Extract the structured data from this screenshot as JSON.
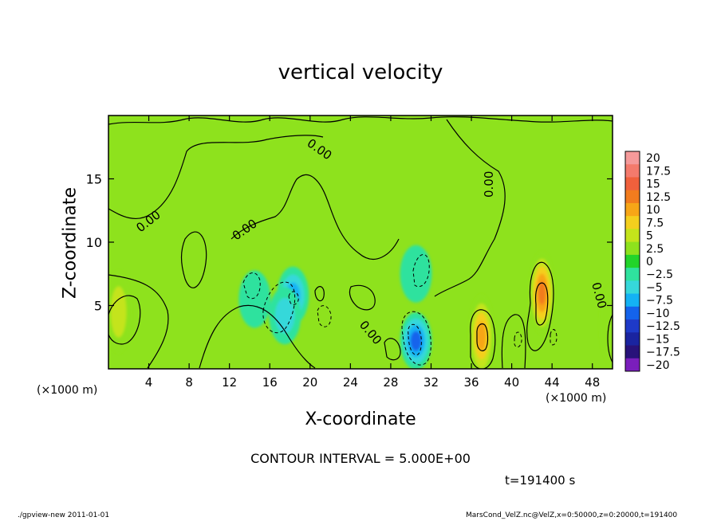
{
  "chart_data": {
    "type": "heatmap",
    "title": "vertical velocity",
    "xlabel": "X-coordinate",
    "ylabel": "Z-coordinate",
    "x_unit_label": "(×1000 m)",
    "y_unit_label": "(×1000 m)",
    "xlim": [
      0,
      50
    ],
    "ylim": [
      0,
      20
    ],
    "x_ticks": [
      4,
      8,
      12,
      16,
      20,
      24,
      28,
      32,
      36,
      40,
      44,
      48
    ],
    "y_ticks": [
      5,
      10,
      15
    ],
    "colorbar": {
      "levels": [
        "20",
        "17.5",
        "15",
        "12.5",
        "10",
        "7.5",
        "5",
        "2.5",
        "0",
        "−2.5",
        "−5",
        "−7.5",
        "−10",
        "−12.5",
        "−15",
        "−17.5",
        "−20"
      ],
      "colors": [
        "#f59a9a",
        "#f47a6c",
        "#f0603c",
        "#f27c1e",
        "#f7a617",
        "#f4cf1e",
        "#c4e41b",
        "#8ee21d",
        "#22d42a",
        "#2fe29e",
        "#36d8da",
        "#14b2f4",
        "#1463ec",
        "#1e3ac8",
        "#1a24a0",
        "#28127a",
        "#7a1ebc"
      ]
    },
    "contour_label": "0.00",
    "features": [
      {
        "kind": "updraft",
        "x": 43,
        "z": 6.0,
        "value": 13
      },
      {
        "kind": "updraft",
        "x": 37,
        "z": 2.6,
        "value": 11
      },
      {
        "kind": "updraft",
        "x": 1.0,
        "z": 4.5,
        "value": 6
      },
      {
        "kind": "updraft",
        "x": 50,
        "z": 3.5,
        "value": 4
      },
      {
        "kind": "downdraft",
        "x": 30.5,
        "z": 2.2,
        "value": -11
      },
      {
        "kind": "downdraft",
        "x": 18.3,
        "z": 5.8,
        "value": -9
      },
      {
        "kind": "downdraft",
        "x": 17.5,
        "z": 4.2,
        "value": -6
      },
      {
        "kind": "downdraft",
        "x": 14.5,
        "z": 5.5,
        "value": -4
      },
      {
        "kind": "downdraft",
        "x": 30.5,
        "z": 7.5,
        "value": -3
      }
    ]
  },
  "contour_interval": "CONTOUR INTERVAL = 5.000E+00",
  "timestamp": "t=191400 s",
  "footer": {
    "left": "./gpview-new   2011-01-01",
    "right": "MarsCond_VelZ.nc@VelZ,x=0:50000,z=0:20000,t=191400"
  }
}
